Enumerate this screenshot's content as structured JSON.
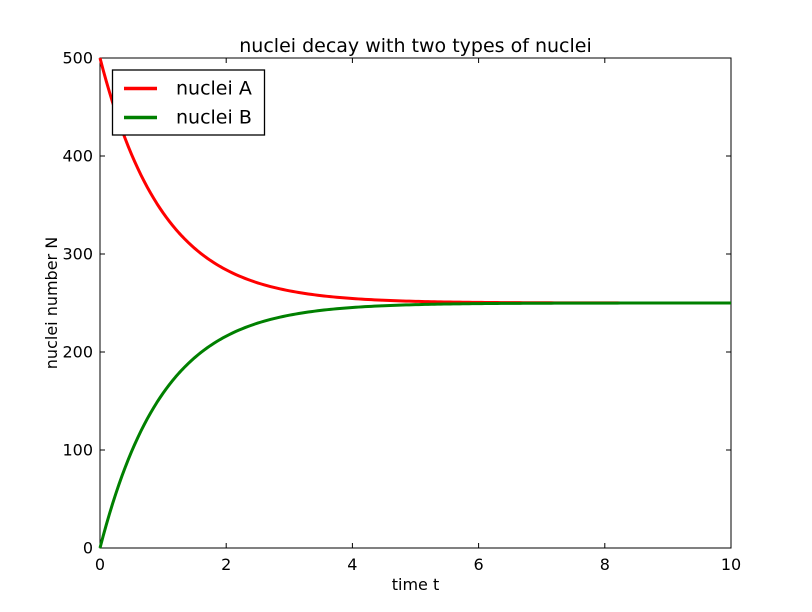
{
  "chart_data": {
    "type": "line",
    "title": "nuclei decay with two types of nuclei",
    "xlabel": "time t",
    "ylabel": "nuclei number N",
    "xlim": [
      0,
      10
    ],
    "ylim": [
      0,
      500
    ],
    "xticks": [
      0,
      2,
      4,
      6,
      8,
      10
    ],
    "yticks": [
      0,
      100,
      200,
      300,
      400,
      500
    ],
    "grid": false,
    "legend_position": "upper-left",
    "background_color": "#ffffff",
    "axes_color": "#000000",
    "t": [
      0,
      0.5,
      1,
      1.5,
      2,
      2.5,
      3,
      3.5,
      4,
      4.5,
      5,
      5.5,
      6,
      6.5,
      7,
      7.5,
      8,
      8.5,
      9,
      9.5,
      10
    ],
    "series": [
      {
        "name": "nuclei A",
        "color": "#ff0000",
        "model": {
          "type": "exponential-approach",
          "start": 500,
          "equilibrium": 250,
          "rate": 1.0
        },
        "values": [
          500,
          401.6,
          342.0,
          305.8,
          283.8,
          270.5,
          262.4,
          257.6,
          254.6,
          252.8,
          251.7,
          251.0,
          250.6,
          250.4,
          250.2,
          250.1,
          250.1,
          250.1,
          250.0,
          250.0,
          250.0
        ]
      },
      {
        "name": "nuclei B",
        "color": "#008000",
        "model": {
          "type": "exponential-approach",
          "start": 0,
          "equilibrium": 250,
          "rate": 1.0
        },
        "values": [
          0,
          98.4,
          158.0,
          194.2,
          216.2,
          229.5,
          237.6,
          242.4,
          245.4,
          247.2,
          248.3,
          249.0,
          249.4,
          249.6,
          249.8,
          249.9,
          249.9,
          249.9,
          250.0,
          250.0,
          250.0
        ]
      }
    ]
  }
}
